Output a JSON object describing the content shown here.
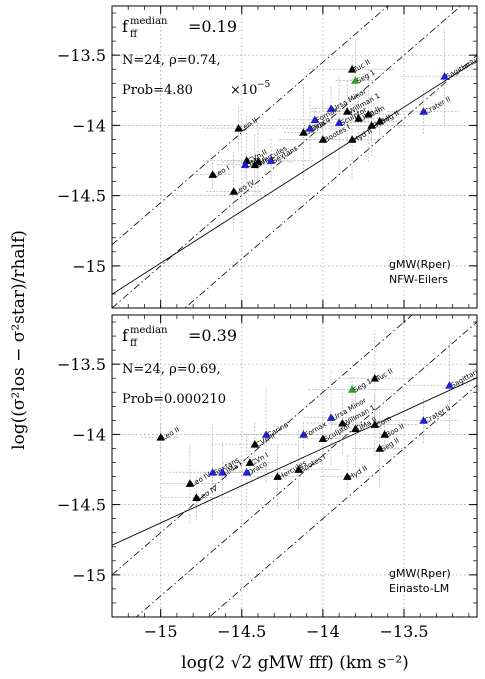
{
  "figure": {
    "ylabel": "log((σ²los − σ²star)/rhalf)",
    "xlabel": "log(2 √2 gMW fff) (km s⁻²)"
  },
  "chart_data": [
    {
      "type": "scatter",
      "stats": {
        "fff_label": "f",
        "fff_sup": "median",
        "fff_sub": "ff",
        "fff_value": "=0.19",
        "n_rho": "N=24, ρ=0.74,",
        "prob_label": "Prob=4.80",
        "prob_exp": "×10",
        "prob_exp_power": "−5"
      },
      "model": {
        "main": "gMW(Rper)",
        "sub": "NFW-Eilers"
      },
      "xlim": [
        -15.3,
        -13.05
      ],
      "ylim": [
        -15.3,
        -13.15
      ],
      "xticks": [
        -15,
        -14.5,
        -14,
        -13.5
      ],
      "yticks": [
        -15,
        -14.5,
        -14,
        -13.5
      ],
      "ytick_labels": [
        "−15",
        "−14.5",
        "−14",
        "−13.5"
      ],
      "grid": true,
      "fit_line": {
        "slope": 0.74,
        "intercept": -3.88
      },
      "one_to_one_offsets": [
        -0.45,
        0,
        0.45
      ],
      "colors": {
        "black": "#000000",
        "blue": "#1f1fd6",
        "green": "#2ca02c",
        "error": "#bbbbbb"
      },
      "points": [
        {
          "x": -14.68,
          "y": -14.35,
          "c": "black",
          "label": "Leo I"
        },
        {
          "x": -14.55,
          "y": -14.47,
          "c": "black",
          "label": "Leo IV"
        },
        {
          "x": -14.52,
          "y": -14.02,
          "c": "black",
          "label": "Leo II"
        },
        {
          "x": -14.47,
          "y": -14.25,
          "c": "black",
          "label": "CVn II"
        },
        {
          "x": -14.42,
          "y": -14.28,
          "c": "black",
          "label": "CVn I"
        },
        {
          "x": -14.48,
          "y": -14.28,
          "c": "blue",
          "label": "UMa I"
        },
        {
          "x": -14.4,
          "y": -14.26,
          "c": "black",
          "label": "Hercules"
        },
        {
          "x": -14.32,
          "y": -14.25,
          "c": "blue",
          "label": "Sextans"
        },
        {
          "x": -14.12,
          "y": -14.05,
          "c": "black",
          "label": "Carina"
        },
        {
          "x": -14.08,
          "y": -14.02,
          "c": "blue",
          "label": "Draco"
        },
        {
          "x": -14.05,
          "y": -13.96,
          "c": "blue",
          "label": "Fornax"
        },
        {
          "x": -14.0,
          "y": -14.1,
          "c": "black",
          "label": "Bootes I"
        },
        {
          "x": -13.95,
          "y": -13.88,
          "c": "blue",
          "label": "Ursa Minor"
        },
        {
          "x": -13.9,
          "y": -13.98,
          "c": "blue",
          "label": "Sculptor"
        },
        {
          "x": -13.85,
          "y": -13.9,
          "c": "black",
          "label": "Willman 1"
        },
        {
          "x": -13.82,
          "y": -13.6,
          "c": "black",
          "label": "Tuc II"
        },
        {
          "x": -13.8,
          "y": -13.68,
          "c": "green",
          "label": "Seg 1"
        },
        {
          "x": -13.78,
          "y": -13.95,
          "c": "black",
          "label": "UMa II"
        },
        {
          "x": -13.72,
          "y": -13.92,
          "c": "black",
          "label": "Com"
        },
        {
          "x": -13.7,
          "y": -14.0,
          "c": "black",
          "label": "Boo II"
        },
        {
          "x": -13.65,
          "y": -13.97,
          "c": "black",
          "label": "Seg II"
        },
        {
          "x": -13.82,
          "y": -14.1,
          "c": "black",
          "label": "Hyd II"
        },
        {
          "x": -13.38,
          "y": -13.9,
          "c": "blue",
          "label": "Crater II"
        },
        {
          "x": -13.25,
          "y": -13.65,
          "c": "blue",
          "label": "Sagittarius"
        }
      ]
    },
    {
      "type": "scatter",
      "stats": {
        "fff_label": "f",
        "fff_sup": "median",
        "fff_sub": "ff",
        "fff_value": "=0.39",
        "n_rho": "N=24, ρ=0.69,",
        "prob_label": "Prob=0.000210",
        "prob_exp": "",
        "prob_exp_power": ""
      },
      "model": {
        "main": "gMW(Rper)",
        "sub": "Einasto-LM"
      },
      "xlim": [
        -15.3,
        -13.05
      ],
      "ylim": [
        -15.3,
        -13.15
      ],
      "xticks": [
        -15,
        -14.5,
        -14,
        -13.5
      ],
      "xtick_labels": [
        "−15",
        "−14.5",
        "−14",
        "−13.5"
      ],
      "yticks": [
        -15,
        -14.5,
        -14,
        -13.5
      ],
      "ytick_labels": [
        "−15",
        "−14.5",
        "−14",
        "−13.5"
      ],
      "grid": true,
      "fit_line": {
        "slope": 0.53,
        "intercept": -6.68
      },
      "one_to_one_offsets": [
        -0.6,
        -0.15,
        0.3
      ],
      "colors": {
        "black": "#000000",
        "blue": "#1f1fd6",
        "green": "#2ca02c",
        "error": "#bbbbbb"
      },
      "points": [
        {
          "x": -15.0,
          "y": -14.02,
          "c": "black",
          "label": "Leo II"
        },
        {
          "x": -14.82,
          "y": -14.35,
          "c": "black",
          "label": "Leo IV"
        },
        {
          "x": -14.78,
          "y": -14.45,
          "c": "black",
          "label": "Leo IV"
        },
        {
          "x": -14.68,
          "y": -14.27,
          "c": "blue",
          "label": "Sextans"
        },
        {
          "x": -14.62,
          "y": -14.27,
          "c": "blue",
          "label": "UMa I"
        },
        {
          "x": -14.45,
          "y": -14.2,
          "c": "black",
          "label": "CVn I"
        },
        {
          "x": -14.47,
          "y": -14.27,
          "c": "blue",
          "label": "Draco"
        },
        {
          "x": -14.42,
          "y": -14.07,
          "c": "black",
          "label": "CVn II"
        },
        {
          "x": -14.35,
          "y": -14.0,
          "c": "blue",
          "label": "Carina"
        },
        {
          "x": -14.28,
          "y": -14.3,
          "c": "black",
          "label": "Hercules"
        },
        {
          "x": -14.12,
          "y": -14.0,
          "c": "blue",
          "label": "Fornax"
        },
        {
          "x": -14.15,
          "y": -14.25,
          "c": "black",
          "label": "Bootes I"
        },
        {
          "x": -14.0,
          "y": -14.03,
          "c": "black",
          "label": "Sculptor"
        },
        {
          "x": -13.95,
          "y": -13.88,
          "c": "blue",
          "label": "Ursa Minor"
        },
        {
          "x": -13.88,
          "y": -13.92,
          "c": "black",
          "label": "Willman 1"
        },
        {
          "x": -13.82,
          "y": -13.68,
          "c": "green",
          "label": "Seg 1"
        },
        {
          "x": -13.8,
          "y": -13.96,
          "c": "black",
          "label": "UMa II"
        },
        {
          "x": -13.85,
          "y": -14.3,
          "c": "black",
          "label": "Hyd II"
        },
        {
          "x": -13.68,
          "y": -13.6,
          "c": "black",
          "label": "Tuc II"
        },
        {
          "x": -13.68,
          "y": -13.93,
          "c": "black",
          "label": "Com"
        },
        {
          "x": -13.62,
          "y": -14.0,
          "c": "black",
          "label": "Boo II"
        },
        {
          "x": -13.65,
          "y": -14.1,
          "c": "black",
          "label": "Seg II"
        },
        {
          "x": -13.38,
          "y": -13.9,
          "c": "blue",
          "label": "Crater II"
        },
        {
          "x": -13.22,
          "y": -13.65,
          "c": "blue",
          "label": "Sagittarius"
        }
      ]
    }
  ]
}
